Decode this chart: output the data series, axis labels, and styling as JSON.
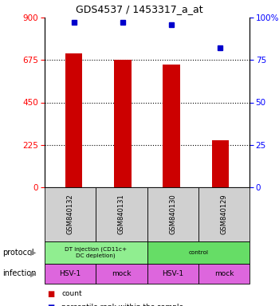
{
  "title": "GDS4537 / 1453317_a_at",
  "samples": [
    "GSM840132",
    "GSM840131",
    "GSM840130",
    "GSM840129"
  ],
  "counts": [
    710,
    678,
    650,
    248
  ],
  "percentiles": [
    97,
    97,
    96,
    82
  ],
  "ylim_left": [
    0,
    900
  ],
  "ylim_right": [
    0,
    100
  ],
  "yticks_left": [
    0,
    225,
    450,
    675,
    900
  ],
  "yticks_right": [
    0,
    25,
    50,
    75,
    100
  ],
  "bar_color": "#cc0000",
  "dot_color": "#0000cc",
  "protocol_spans": [
    [
      0,
      2,
      "DT injection (CD11c+\nDC depletion)",
      "#90ee90"
    ],
    [
      2,
      4,
      "control",
      "#66dd66"
    ]
  ],
  "infection_labels": [
    "HSV-1",
    "mock",
    "HSV-1",
    "mock"
  ],
  "infection_color": "#dd66dd",
  "label_protocol": "protocol",
  "label_infection": "infection",
  "bg_color": "#ffffff",
  "sample_bg": "#d0d0d0"
}
